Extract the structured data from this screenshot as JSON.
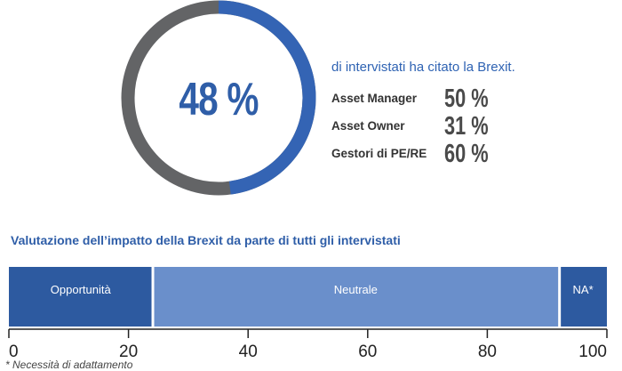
{
  "donut": {
    "value": 48,
    "label": "48 %",
    "colors": {
      "filled": "#3464b4",
      "rest": "#636466"
    }
  },
  "headline": "di intervistati ha citato la Brexit.",
  "breakdown": [
    {
      "label": "Asset Manager",
      "value": "50 %"
    },
    {
      "label": "Asset Owner",
      "value": "31 %"
    },
    {
      "label": "Gestori di PE/RE",
      "value": "60 %"
    }
  ],
  "chart_data": {
    "type": "bar",
    "orientation": "horizontal-stacked",
    "title": "Valutazione dell’impatto della Brexit da parte di tutti gli intervistati",
    "categories": [
      "Opportunità",
      "Neutrale",
      "NA*"
    ],
    "values": [
      24,
      68,
      8
    ],
    "colors": [
      "#2d5aa0",
      "#6a8fcb",
      "#2d5aa0"
    ],
    "xlim": [
      0,
      100
    ],
    "ticks": [
      "0",
      "20",
      "40",
      "60",
      "80",
      "100"
    ],
    "footnote": "* Necessità di adattamento"
  }
}
